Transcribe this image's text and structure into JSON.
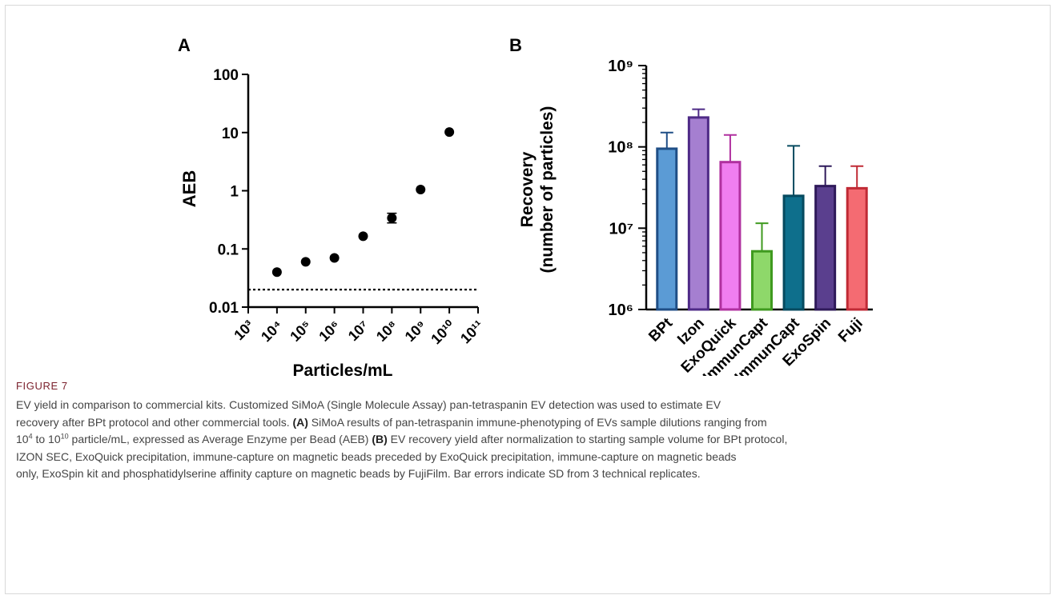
{
  "chart_data": [
    {
      "type": "scatter",
      "panel_label": "A",
      "xlabel": "Particles/mL",
      "ylabel": "AEB",
      "x_scale": "log",
      "y_scale": "log",
      "xlim": [
        1000,
        100000000000
      ],
      "ylim": [
        0.01,
        100
      ],
      "x_tick_labels": [
        "10³",
        "10⁴",
        "10⁵",
        "10⁶",
        "10⁷",
        "10⁸",
        "10⁹",
        "10¹⁰",
        "10¹¹"
      ],
      "y_tick_labels": [
        "100",
        "10",
        "1",
        "0.1",
        "0.01"
      ],
      "points": [
        {
          "x": 10000,
          "y": 0.04
        },
        {
          "x": 100000,
          "y": 0.06
        },
        {
          "x": 1000000,
          "y": 0.07
        },
        {
          "x": 10000000,
          "y": 0.165
        },
        {
          "x": 100000000,
          "y": 0.34,
          "err_low": 0.28,
          "err_high": 0.41
        },
        {
          "x": 1000000000,
          "y": 1.05
        },
        {
          "x": 10000000000,
          "y": 10.2
        }
      ],
      "reference_line": {
        "y": 0.02,
        "style": "dotted"
      },
      "grid": false
    },
    {
      "type": "bar",
      "panel_label": "B",
      "ylabel": "Recovery\n(number of particles)",
      "y_scale": "log",
      "ylim": [
        1000000,
        1000000000
      ],
      "y_tick_labels": [
        "10⁹",
        "10⁸",
        "10⁷",
        "10⁶"
      ],
      "categories": [
        "BPt",
        "Izon",
        "ExoQuick",
        "ExoQ+ImmunCapt",
        "ImmunCapt",
        "ExoSpin",
        "Fuji"
      ],
      "values": [
        95000000,
        230000000,
        65000000,
        5200000,
        25000000,
        33000000,
        31000000
      ],
      "error_high": [
        150000000,
        290000000,
        140000000,
        11500000,
        103000000,
        58000000,
        58000000
      ],
      "fill_colors": [
        "#5b9bd5",
        "#a57fd0",
        "#f07ef0",
        "#8ed86a",
        "#0e6f8c",
        "#5a3f8e",
        "#f46b72"
      ],
      "stroke_colors": [
        "#1f4e86",
        "#4e2a86",
        "#b0309f",
        "#3f9a1f",
        "#064a5f",
        "#2f1a5a",
        "#c02a35"
      ],
      "grid": false
    }
  ],
  "caption": {
    "title": "FIGURE 7",
    "line1": "EV yield in comparison to commercial kits. Customized SiMoA (Single Molecule Assay) pan-tetraspanin EV detection was used to estimate EV",
    "line2": "recovery after BPt protocol and other commercial tools.",
    "line2_bold": "(A)",
    "line2_rest": " SiMoA results of pan-tetraspanin immune-phenotyping of EVs sample dilutions ranging from",
    "line3_a": "10",
    "line3_sup1": "4",
    "line3_b": " to 10",
    "line3_sup2": "10",
    "line3_c": " particle/mL, expressed as Average Enzyme per Bead (AEB) ",
    "line3_bold": "(B)",
    "line3_d": " EV recovery yield after normalization to starting sample volume for BPt protocol,",
    "line4": "IZON SEC, ExoQuick precipitation, immune-capture on magnetic beads preceded by ExoQuick precipitation, immune-capture on magnetic beads",
    "line5": "only, ExoSpin kit and phosphatidylserine affinity capture on magnetic beads by FujiFilm. Bar errors indicate SD from 3 technical replicates."
  }
}
